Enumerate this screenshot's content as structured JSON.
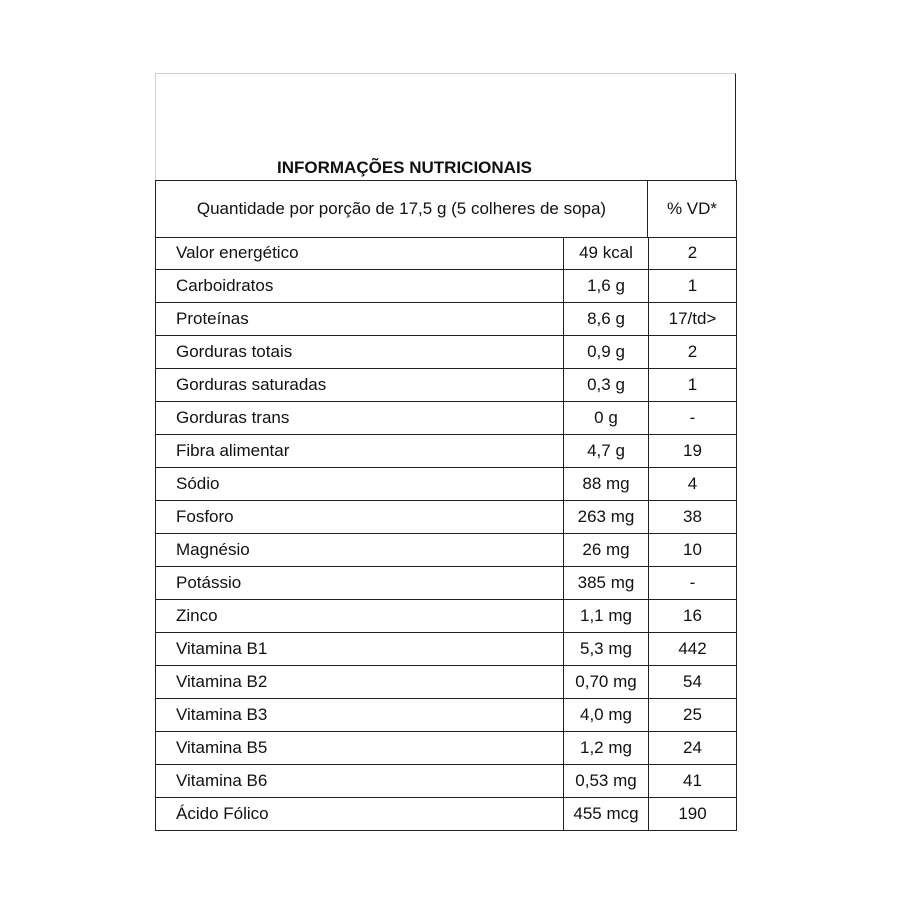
{
  "title": "INFORMAÇÕES NUTRICIONAIS",
  "header": {
    "portion": "Quantidade por porção de 17,5 g (5 colheres de sopa)",
    "vd": "% VD*"
  },
  "rows": [
    {
      "name": "Valor energético",
      "amount": "49 kcal",
      "vd": "2"
    },
    {
      "name": "Carboidratos",
      "amount": "1,6 g",
      "vd": "1"
    },
    {
      "name": "Proteínas",
      "amount": "8,6 g",
      "vd": "17/td>"
    },
    {
      "name": "Gorduras totais",
      "amount": "0,9 g",
      "vd": "2"
    },
    {
      "name": "Gorduras saturadas",
      "amount": "0,3 g",
      "vd": "1"
    },
    {
      "name": "Gorduras trans",
      "amount": "0 g",
      "vd": "-"
    },
    {
      "name": "Fibra alimentar",
      "amount": "4,7 g",
      "vd": "19"
    },
    {
      "name": "Sódio",
      "amount": "88 mg",
      "vd": "4"
    },
    {
      "name": "Fosforo",
      "amount": "263 mg",
      "vd": "38"
    },
    {
      "name": "Magnésio",
      "amount": "26 mg",
      "vd": "10"
    },
    {
      "name": "Potássio",
      "amount": "385 mg",
      "vd": "-"
    },
    {
      "name": "Zinco",
      "amount": "1,1 mg",
      "vd": "16"
    },
    {
      "name": "Vitamina B1",
      "amount": "5,3 mg",
      "vd": "442"
    },
    {
      "name": "Vitamina B2",
      "amount": "0,70 mg",
      "vd": "54"
    },
    {
      "name": "Vitamina B3",
      "amount": "4,0 mg",
      "vd": "25"
    },
    {
      "name": "Vitamina B5",
      "amount": "1,2 mg",
      "vd": "24"
    },
    {
      "name": "Vitamina B6",
      "amount": "0,53 mg",
      "vd": "41"
    },
    {
      "name": "Ácido Fólico",
      "amount": "455 mcg",
      "vd": "190"
    }
  ]
}
